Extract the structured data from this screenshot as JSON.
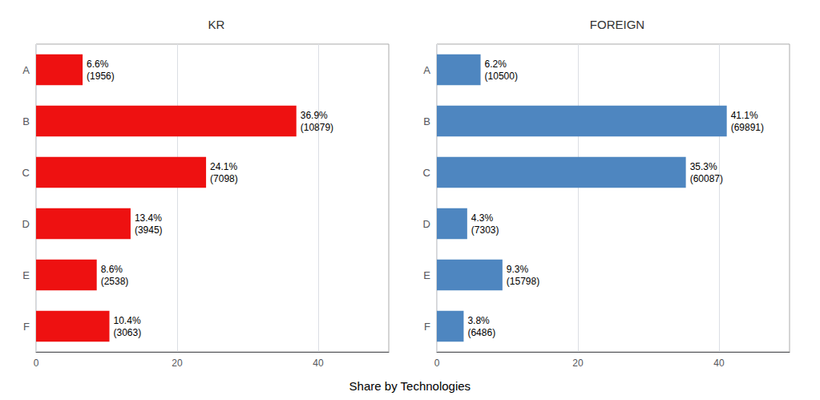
{
  "chart_data": [
    {
      "type": "bar",
      "title": "KR",
      "orientation": "horizontal",
      "categories": [
        "A",
        "B",
        "C",
        "D",
        "E",
        "F"
      ],
      "values": [
        6.6,
        36.9,
        24.1,
        13.4,
        8.6,
        10.4
      ],
      "value_labels": [
        "6.6%",
        "36.9%",
        "24.1%",
        "13.4%",
        "8.6%",
        "10.4%"
      ],
      "counts": [
        1956,
        10879,
        7098,
        3945,
        2538,
        3063
      ],
      "count_labels": [
        "(1956)",
        "(10879)",
        "(7098)",
        "(3945)",
        "(2538)",
        "(3063)"
      ],
      "data_labels": true,
      "color": "#EE1111",
      "xlabel": "Share by Technologies",
      "xlim": [
        0,
        50
      ],
      "xticks": [
        0,
        20,
        40
      ],
      "grid": true
    },
    {
      "type": "bar",
      "title": "FOREIGN",
      "orientation": "horizontal",
      "categories": [
        "A",
        "B",
        "C",
        "D",
        "E",
        "F"
      ],
      "values": [
        6.2,
        41.1,
        35.3,
        4.3,
        9.3,
        3.8
      ],
      "value_labels": [
        "6.2%",
        "41.1%",
        "35.3%",
        "4.3%",
        "9.3%",
        "3.8%"
      ],
      "counts": [
        10500,
        69891,
        60087,
        7303,
        15798,
        6486
      ],
      "count_labels": [
        "(10500)",
        "(69891)",
        "(60087)",
        "(7303)",
        "(15798)",
        "(6486)"
      ],
      "data_labels": true,
      "color": "#4E86C0",
      "xlim": [
        0,
        50
      ],
      "xticks": [
        0,
        20,
        40
      ],
      "grid": true
    }
  ]
}
